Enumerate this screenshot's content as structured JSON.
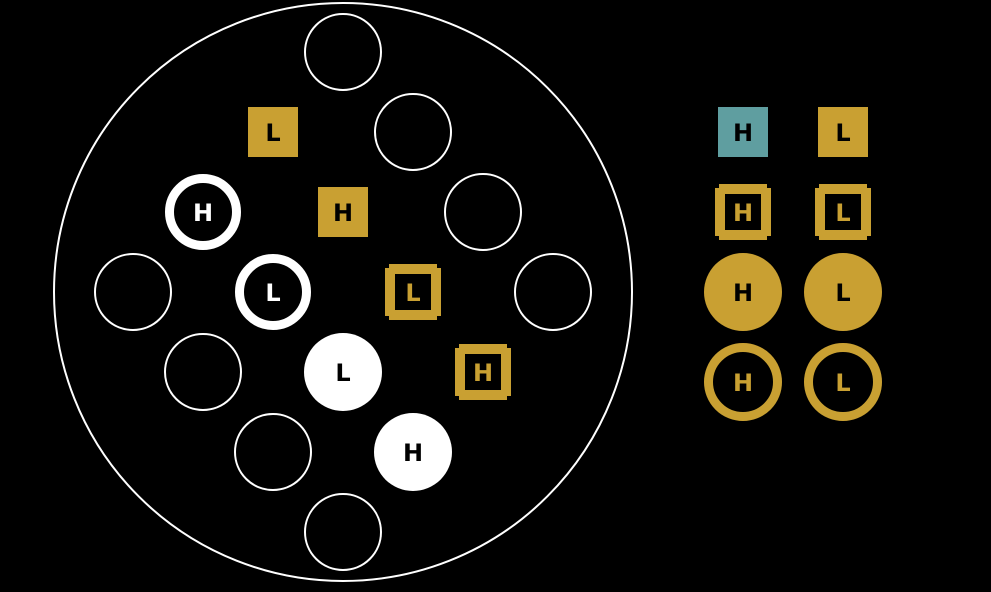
{
  "colors": {
    "background": "#000000",
    "outline": "#ffffff",
    "gold": "#c9a032",
    "teal": "#5f9ea0",
    "black": "#000000"
  },
  "board": {
    "slots": [
      {
        "id": "r0c3",
        "kind": "empty"
      },
      {
        "id": "r1c2",
        "kind": "gold-square",
        "label": "L"
      },
      {
        "id": "r1c4",
        "kind": "empty"
      },
      {
        "id": "r2c1",
        "kind": "white-ring",
        "label": "H"
      },
      {
        "id": "r2c3",
        "kind": "gold-square",
        "label": "H"
      },
      {
        "id": "r2c5",
        "kind": "empty"
      },
      {
        "id": "r3c0",
        "kind": "empty"
      },
      {
        "id": "r3c2",
        "kind": "white-ring",
        "label": "L"
      },
      {
        "id": "r3c4",
        "kind": "gold-square-ring",
        "label": "L"
      },
      {
        "id": "r3c6",
        "kind": "empty"
      },
      {
        "id": "r4c1",
        "kind": "empty"
      },
      {
        "id": "r4c3",
        "kind": "white-disc",
        "label": "L"
      },
      {
        "id": "r4c5",
        "kind": "gold-square-ring",
        "label": "H"
      },
      {
        "id": "r5c2",
        "kind": "empty"
      },
      {
        "id": "r5c4",
        "kind": "white-disc",
        "label": "H"
      },
      {
        "id": "r6c3",
        "kind": "empty"
      }
    ]
  },
  "legend": {
    "items": [
      {
        "kind": "teal-square",
        "label": "H"
      },
      {
        "kind": "gold-square",
        "label": "L"
      },
      {
        "kind": "gold-square-ring",
        "label": "H"
      },
      {
        "kind": "gold-square-ring",
        "label": "L"
      },
      {
        "kind": "gold-disc",
        "label": "H"
      },
      {
        "kind": "gold-disc",
        "label": "L"
      },
      {
        "kind": "gold-ring",
        "label": "H"
      },
      {
        "kind": "gold-ring",
        "label": "L"
      }
    ]
  }
}
